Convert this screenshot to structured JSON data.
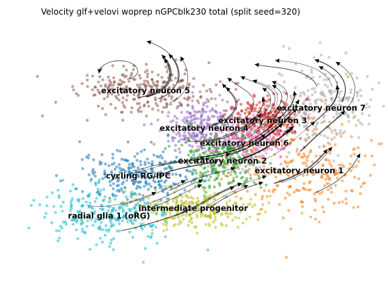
{
  "chart_data": {
    "type": "scatter",
    "title": "Velocity glf+velovi woprep nGPCblk230 total (split seed=320)",
    "xlabel": "",
    "ylabel": "",
    "axes_visible": false,
    "grid": false,
    "legend": "on data",
    "overlay": "velocity streamlines with arrowheads",
    "xlim": [
      0,
      10
    ],
    "ylim": [
      0,
      10
    ],
    "clusters": [
      {
        "label": "excitatory neuron 5",
        "color": "#8c564b",
        "center": [
          3.6,
          7.5
        ],
        "spread": [
          0.9,
          0.45
        ]
      },
      {
        "label": "excitatory neuron 7",
        "color": "#a9a9a9",
        "center": [
          8.4,
          6.8
        ],
        "spread": [
          0.7,
          0.9
        ]
      },
      {
        "label": "excitatory neuron 4",
        "color": "#9467bd",
        "center": [
          5.2,
          6.0
        ],
        "spread": [
          0.55,
          0.6
        ]
      },
      {
        "label": "excitatory neuron 3",
        "color": "#d62728",
        "center": [
          6.8,
          6.3
        ],
        "spread": [
          0.5,
          0.45
        ]
      },
      {
        "label": "excitatory neuron 6",
        "color": "#e377c2",
        "center": [
          6.3,
          5.4
        ],
        "spread": [
          0.6,
          0.45
        ]
      },
      {
        "label": "excitatory neuron 1",
        "color": "#ff7f0e",
        "center": [
          7.8,
          4.3
        ],
        "spread": [
          1.0,
          1.1
        ]
      },
      {
        "label": "excitatory neuron 2",
        "color": "#2ca02c",
        "center": [
          5.7,
          4.7
        ],
        "spread": [
          0.55,
          0.55
        ]
      },
      {
        "label": "cycling RG/IPC",
        "color": "#1f77b4",
        "center": [
          3.4,
          4.1
        ],
        "spread": [
          0.8,
          0.55
        ]
      },
      {
        "label": "intermediate progenitor",
        "color": "#bcbd22",
        "center": [
          4.9,
          2.8
        ],
        "spread": [
          0.9,
          0.35
        ]
      },
      {
        "label": "radial glia 1 (oRG)",
        "color": "#17becf",
        "center": [
          2.6,
          2.5
        ],
        "spread": [
          0.85,
          0.6
        ]
      }
    ]
  }
}
